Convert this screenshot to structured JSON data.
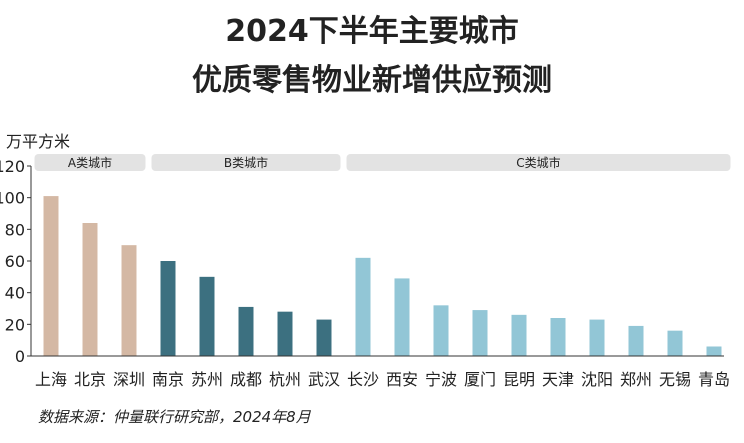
{
  "page": {
    "title_line1": "2024下半年主要城市",
    "title_line2": "优质零售物业新增供应预测",
    "source": "数据来源：仲量联行研究部，2024年8月"
  },
  "chart_data": {
    "type": "bar",
    "title": "2024下半年主要城市优质零售物业新增供应预测",
    "ylabel": "万平方米",
    "xlabel": "",
    "ylim": [
      0,
      120
    ],
    "yticks": [
      0,
      20,
      40,
      60,
      80,
      100,
      120
    ],
    "grid": false,
    "categories": [
      "上海",
      "北京",
      "深圳",
      "南京",
      "苏州",
      "成都",
      "杭州",
      "武汉",
      "长沙",
      "西安",
      "宁波",
      "厦门",
      "昆明",
      "天津",
      "沈阳",
      "郑州",
      "无锡",
      "青岛"
    ],
    "values": [
      101,
      84,
      70,
      60,
      50,
      31,
      28,
      23,
      62,
      49,
      32,
      29,
      26,
      24,
      23,
      19,
      16,
      6
    ],
    "groups": [
      {
        "label": "A类城市",
        "start": 0,
        "end": 2,
        "color": "#d4b8a4"
      },
      {
        "label": "B类城市",
        "start": 3,
        "end": 7,
        "color": "#3c7080"
      },
      {
        "label": "C类城市",
        "start": 8,
        "end": 17,
        "color": "#92c6d6"
      }
    ],
    "group_band_color": "#e3e3e3"
  }
}
